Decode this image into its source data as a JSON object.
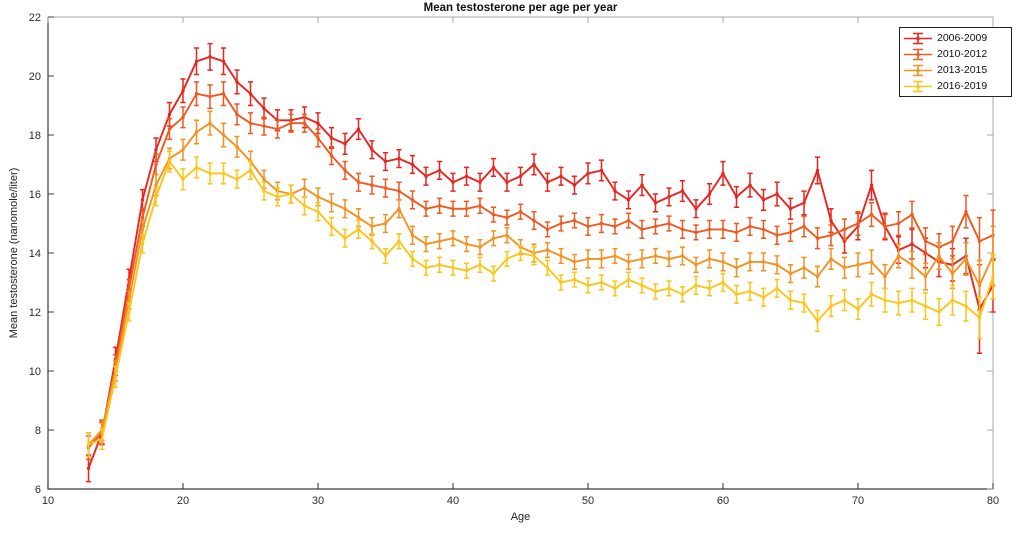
{
  "chart_data": {
    "type": "line",
    "error_bars": true,
    "title": "Mean testosterone per age per year",
    "xlabel": "Age",
    "ylabel": "Mean testosterone (nanomole/liter)",
    "xlim": [
      10,
      80
    ],
    "ylim": [
      6,
      22
    ],
    "x_ticks": [
      10,
      20,
      30,
      40,
      50,
      60,
      70,
      80
    ],
    "y_ticks": [
      6,
      8,
      10,
      12,
      14,
      16,
      18,
      20,
      22
    ],
    "grid": false,
    "legend_position": "top-right",
    "x": [
      13,
      14,
      15,
      16,
      17,
      18,
      19,
      20,
      21,
      22,
      23,
      24,
      25,
      26,
      27,
      28,
      29,
      30,
      31,
      32,
      33,
      34,
      35,
      36,
      37,
      38,
      39,
      40,
      41,
      42,
      43,
      44,
      45,
      46,
      47,
      48,
      49,
      50,
      51,
      52,
      53,
      54,
      55,
      56,
      57,
      58,
      59,
      60,
      61,
      62,
      63,
      64,
      65,
      66,
      67,
      68,
      69,
      70,
      71,
      72,
      73,
      74,
      75,
      76,
      77,
      78,
      79,
      80
    ],
    "series": [
      {
        "name": "2006-2009",
        "color": "#e8251f",
        "values": [
          6.7,
          7.9,
          10.4,
          13.1,
          15.8,
          17.5,
          18.7,
          19.5,
          20.5,
          20.65,
          20.5,
          19.8,
          19.4,
          18.9,
          18.5,
          18.5,
          18.6,
          18.4,
          17.9,
          17.7,
          18.2,
          17.5,
          17.1,
          17.2,
          17.0,
          16.6,
          16.8,
          16.4,
          16.6,
          16.4,
          16.9,
          16.4,
          16.6,
          17.0,
          16.4,
          16.6,
          16.3,
          16.7,
          16.8,
          16.1,
          15.8,
          16.3,
          15.7,
          15.9,
          16.1,
          15.5,
          16.0,
          16.7,
          15.9,
          16.3,
          15.8,
          16.0,
          15.5,
          15.7,
          16.8,
          15.1,
          14.4,
          14.9,
          16.3,
          14.9,
          14.1,
          14.3,
          14.0,
          13.7,
          13.6,
          13.9,
          12.1,
          12.9
        ],
        "errors": [
          0.45,
          0.4,
          0.4,
          0.35,
          0.35,
          0.4,
          0.4,
          0.4,
          0.45,
          0.45,
          0.45,
          0.4,
          0.4,
          0.35,
          0.35,
          0.35,
          0.35,
          0.35,
          0.35,
          0.35,
          0.35,
          0.3,
          0.3,
          0.3,
          0.3,
          0.3,
          0.3,
          0.3,
          0.3,
          0.3,
          0.3,
          0.3,
          0.3,
          0.35,
          0.3,
          0.3,
          0.3,
          0.35,
          0.35,
          0.3,
          0.3,
          0.35,
          0.3,
          0.3,
          0.35,
          0.3,
          0.35,
          0.4,
          0.35,
          0.4,
          0.35,
          0.4,
          0.35,
          0.4,
          0.45,
          0.4,
          0.4,
          0.45,
          0.5,
          0.45,
          0.45,
          0.5,
          0.5,
          0.5,
          0.55,
          0.6,
          1.5,
          0.9
        ]
      },
      {
        "name": "2010-2012",
        "color": "#ee5a21",
        "values": [
          7.4,
          7.9,
          10.2,
          12.8,
          15.2,
          17.0,
          18.2,
          18.6,
          19.4,
          19.3,
          19.4,
          18.7,
          18.4,
          18.3,
          18.2,
          18.4,
          18.4,
          17.9,
          17.3,
          16.8,
          16.4,
          16.3,
          16.2,
          16.1,
          15.8,
          15.5,
          15.6,
          15.5,
          15.5,
          15.6,
          15.3,
          15.2,
          15.4,
          15.1,
          14.8,
          15.0,
          15.1,
          14.9,
          15.0,
          14.9,
          15.1,
          14.8,
          14.9,
          15.0,
          14.8,
          14.7,
          14.8,
          14.8,
          14.7,
          14.9,
          14.8,
          14.6,
          14.7,
          14.9,
          14.5,
          14.6,
          14.8,
          15.0,
          15.3,
          14.9,
          15.0,
          15.3,
          14.4,
          14.2,
          14.4,
          15.4,
          14.4,
          14.6
        ],
        "errors": [
          0.4,
          0.35,
          0.35,
          0.3,
          0.3,
          0.35,
          0.35,
          0.35,
          0.4,
          0.4,
          0.4,
          0.35,
          0.35,
          0.3,
          0.3,
          0.3,
          0.3,
          0.3,
          0.3,
          0.3,
          0.3,
          0.3,
          0.3,
          0.3,
          0.3,
          0.25,
          0.25,
          0.25,
          0.25,
          0.25,
          0.25,
          0.25,
          0.25,
          0.3,
          0.25,
          0.25,
          0.25,
          0.3,
          0.3,
          0.25,
          0.25,
          0.3,
          0.25,
          0.25,
          0.3,
          0.25,
          0.3,
          0.3,
          0.3,
          0.3,
          0.3,
          0.3,
          0.3,
          0.35,
          0.35,
          0.35,
          0.35,
          0.4,
          0.4,
          0.4,
          0.4,
          0.45,
          0.45,
          0.45,
          0.5,
          0.55,
          0.8,
          0.85
        ]
      },
      {
        "name": "2013-2015",
        "color": "#f39222",
        "values": [
          7.5,
          8.0,
          10.0,
          12.4,
          14.8,
          16.3,
          17.2,
          17.5,
          18.1,
          18.4,
          18.0,
          17.6,
          17.1,
          16.5,
          16.1,
          16.0,
          16.2,
          15.9,
          15.7,
          15.5,
          15.2,
          14.9,
          15.0,
          15.5,
          14.6,
          14.3,
          14.4,
          14.5,
          14.3,
          14.2,
          14.5,
          14.6,
          14.2,
          14.0,
          14.1,
          13.9,
          13.7,
          13.8,
          13.8,
          13.9,
          13.7,
          13.8,
          13.9,
          13.8,
          13.9,
          13.6,
          13.8,
          13.7,
          13.5,
          13.7,
          13.7,
          13.6,
          13.3,
          13.5,
          13.2,
          13.8,
          13.5,
          13.6,
          13.7,
          13.2,
          13.9,
          13.6,
          13.2,
          13.9,
          13.3,
          13.8,
          12.9,
          13.9
        ],
        "errors": [
          0.4,
          0.35,
          0.35,
          0.3,
          0.3,
          0.35,
          0.35,
          0.35,
          0.4,
          0.4,
          0.4,
          0.35,
          0.35,
          0.3,
          0.3,
          0.3,
          0.3,
          0.3,
          0.3,
          0.3,
          0.3,
          0.3,
          0.3,
          0.3,
          0.3,
          0.25,
          0.25,
          0.25,
          0.25,
          0.25,
          0.25,
          0.25,
          0.25,
          0.3,
          0.25,
          0.25,
          0.25,
          0.3,
          0.3,
          0.25,
          0.25,
          0.3,
          0.25,
          0.25,
          0.3,
          0.25,
          0.3,
          0.3,
          0.3,
          0.3,
          0.3,
          0.3,
          0.3,
          0.35,
          0.35,
          0.35,
          0.35,
          0.4,
          0.4,
          0.4,
          0.4,
          0.45,
          0.45,
          0.45,
          0.5,
          0.55,
          0.85,
          1.0
        ]
      },
      {
        "name": "2016-2019",
        "color": "#fbc51c",
        "values": [
          7.5,
          7.7,
          9.8,
          12.0,
          14.3,
          15.9,
          17.1,
          16.5,
          16.9,
          16.7,
          16.7,
          16.5,
          16.8,
          16.1,
          15.9,
          16.0,
          15.6,
          15.4,
          14.9,
          14.5,
          14.8,
          14.4,
          13.9,
          14.4,
          13.8,
          13.5,
          13.6,
          13.5,
          13.4,
          13.6,
          13.3,
          13.8,
          14.0,
          13.9,
          13.5,
          13.0,
          13.1,
          12.9,
          13.0,
          12.8,
          13.1,
          12.9,
          12.7,
          12.8,
          12.6,
          12.9,
          12.8,
          13.0,
          12.6,
          12.7,
          12.5,
          12.8,
          12.4,
          12.3,
          11.7,
          12.2,
          12.4,
          12.1,
          12.6,
          12.4,
          12.3,
          12.4,
          12.2,
          12.0,
          12.4,
          12.2,
          11.8,
          13.2
        ],
        "errors": [
          0.4,
          0.35,
          0.35,
          0.3,
          0.3,
          0.3,
          0.35,
          0.35,
          0.35,
          0.35,
          0.35,
          0.3,
          0.3,
          0.3,
          0.3,
          0.3,
          0.3,
          0.3,
          0.3,
          0.3,
          0.3,
          0.25,
          0.25,
          0.25,
          0.25,
          0.25,
          0.25,
          0.25,
          0.25,
          0.25,
          0.25,
          0.25,
          0.25,
          0.3,
          0.25,
          0.25,
          0.25,
          0.25,
          0.25,
          0.25,
          0.25,
          0.25,
          0.25,
          0.25,
          0.25,
          0.3,
          0.25,
          0.3,
          0.3,
          0.3,
          0.3,
          0.3,
          0.3,
          0.3,
          0.35,
          0.35,
          0.35,
          0.35,
          0.4,
          0.4,
          0.4,
          0.4,
          0.45,
          0.45,
          0.5,
          0.5,
          0.7,
          0.75
        ]
      }
    ]
  },
  "colors": {
    "axis": "#3c3c3c",
    "box": "#a8a8a8",
    "tick_label": "#2b2b2b",
    "background": "#ffffff"
  }
}
